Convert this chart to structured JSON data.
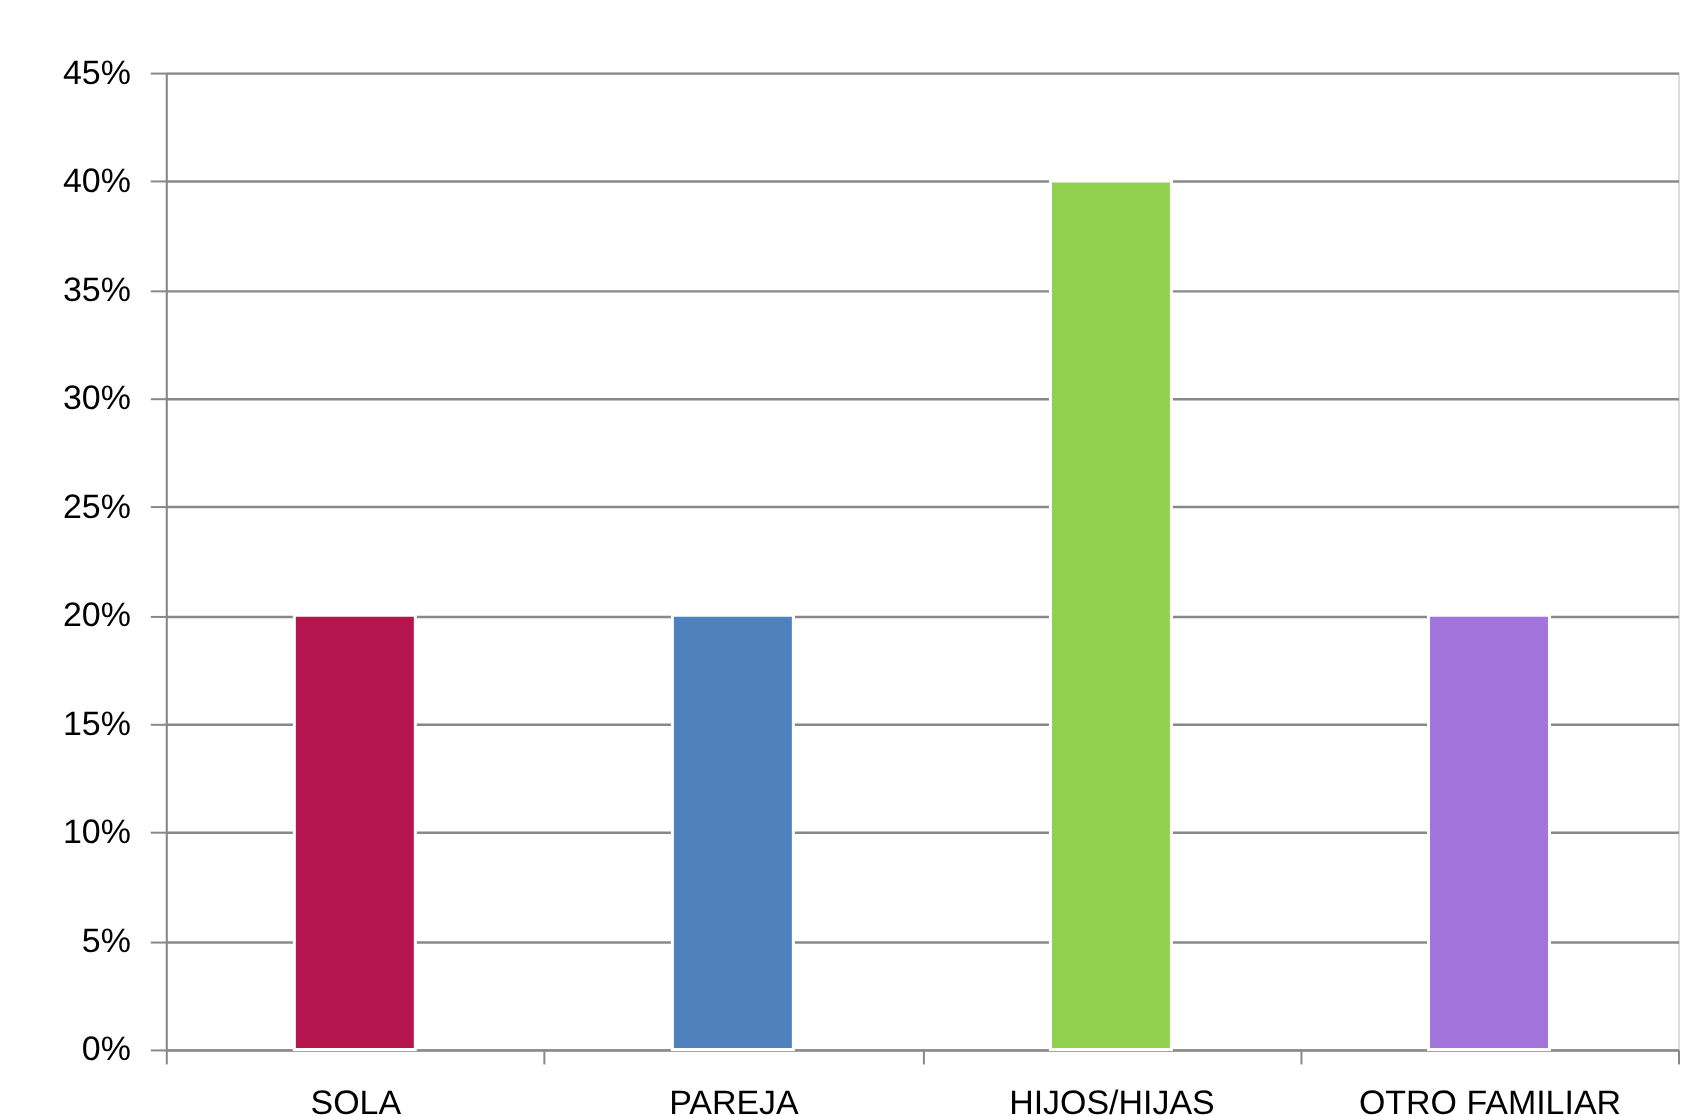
{
  "chart_data": {
    "type": "bar",
    "categories": [
      "SOLA",
      "PAREJA",
      "HIJOS/HIJAS",
      "OTRO FAMILIAR"
    ],
    "values": [
      20,
      20,
      40,
      20
    ],
    "colors": [
      "#b5154d",
      "#4f81bd",
      "#92d050",
      "#a374db"
    ],
    "ylim": [
      0,
      45
    ],
    "yticks": [
      {
        "value": 0,
        "label": "0%"
      },
      {
        "value": 5,
        "label": "5%"
      },
      {
        "value": 10,
        "label": "10%"
      },
      {
        "value": 15,
        "label": "15%"
      },
      {
        "value": 20,
        "label": "20%"
      },
      {
        "value": 25,
        "label": "25%"
      },
      {
        "value": 30,
        "label": "30%"
      },
      {
        "value": 35,
        "label": "35%"
      },
      {
        "value": 40,
        "label": "40%"
      },
      {
        "value": 45,
        "label": "45%"
      }
    ],
    "grid": "y"
  }
}
